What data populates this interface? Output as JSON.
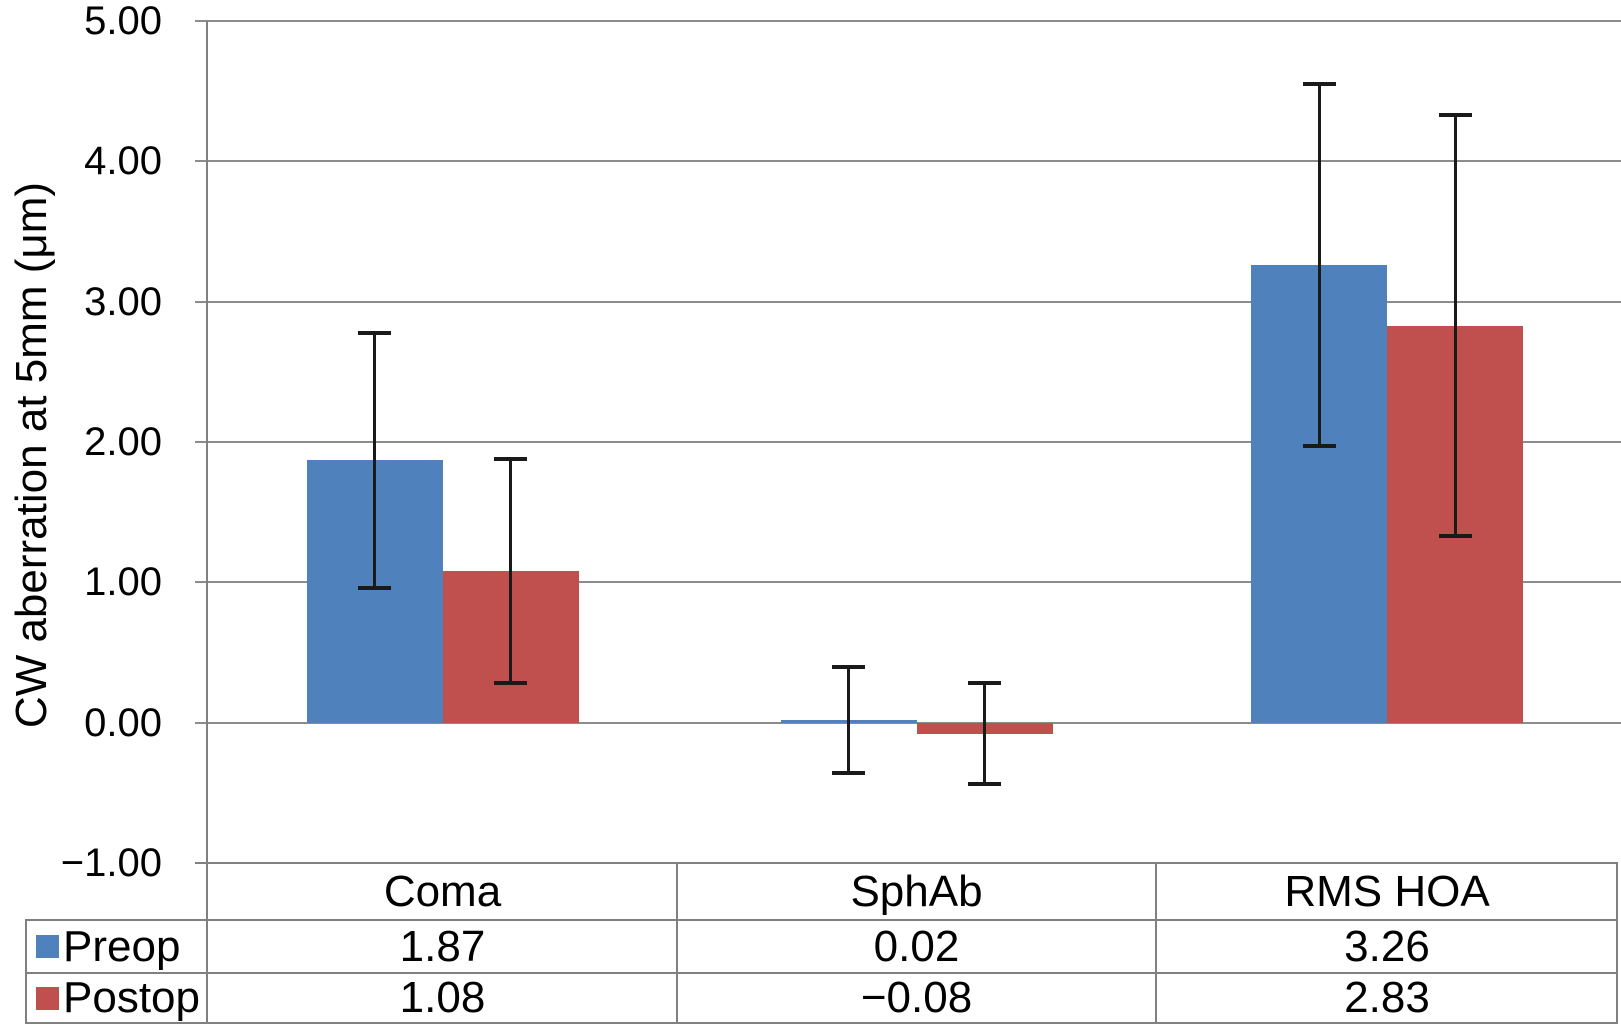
{
  "chart_data": {
    "type": "bar",
    "ylabel": "CW aberration at 5mm (μm)",
    "categories": [
      "Coma",
      "SphAb",
      "RMS HOA"
    ],
    "series": [
      {
        "name": "Preop",
        "color": "#4F81BD",
        "values": [
          1.87,
          0.02,
          3.26
        ],
        "errors": [
          0.91,
          0.38,
          1.29
        ]
      },
      {
        "name": "Postop",
        "color": "#C0504D",
        "values": [
          1.08,
          -0.08,
          2.83
        ],
        "errors": [
          0.8,
          0.36,
          1.5
        ]
      }
    ],
    "y_axis": {
      "min": -1.0,
      "max": 5.0,
      "step": 1.0,
      "tick_labels": [
        "5.00",
        "4.00",
        "3.00",
        "2.00",
        "1.00",
        "0.00",
        "−1.00"
      ]
    },
    "grid": true,
    "legend_position": "table-left",
    "error_bars": true
  },
  "table": {
    "column_headers": [
      "Coma",
      "SphAb",
      "RMS HOA"
    ],
    "rows": [
      {
        "label": "Preop",
        "swatch_color": "#4F81BD",
        "cells": [
          "1.87",
          "0.02",
          "3.26"
        ]
      },
      {
        "label": "Postop",
        "swatch_color": "#C0504D",
        "cells": [
          "1.08",
          "−0.08",
          "2.83"
        ]
      }
    ]
  },
  "colors": {
    "gridline": "#8C8C8C",
    "axis": "#808080",
    "error_bar": "#1A1A1A",
    "preop": "#4F81BD",
    "postop": "#C0504D",
    "background": "#FFFFFF",
    "text": "#000000"
  }
}
